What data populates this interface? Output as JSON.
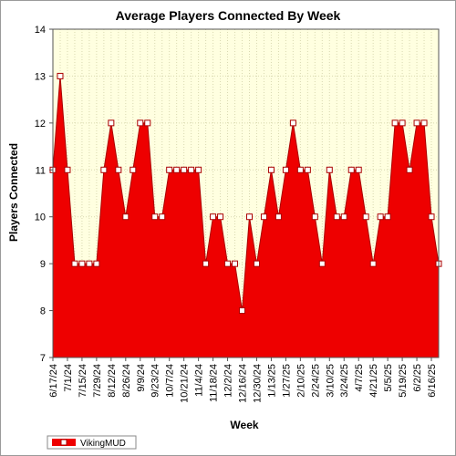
{
  "chart_data": {
    "type": "area",
    "title": "Average Players Connected By Week",
    "xlabel": "Week",
    "ylabel": "Players Connected",
    "ylim": [
      7,
      14
    ],
    "yticks": [
      7,
      8,
      9,
      10,
      11,
      12,
      13,
      14
    ],
    "grid": true,
    "legend_position": "bottom-left",
    "x_tick_labels": [
      "6/17/24",
      "7/1/24",
      "7/15/24",
      "7/29/24",
      "8/12/24",
      "8/26/24",
      "9/9/24",
      "9/23/24",
      "10/7/24",
      "10/21/24",
      "11/4/24",
      "11/18/24",
      "12/2/24",
      "12/16/24",
      "12/30/24",
      "1/13/25",
      "1/27/25",
      "2/10/25",
      "2/24/25",
      "3/10/25",
      "3/24/25",
      "4/7/25",
      "4/21/25",
      "5/5/25",
      "5/19/25",
      "6/2/25",
      "6/16/25"
    ],
    "series": [
      {
        "name": "VikingMUD",
        "color": "#ee0000",
        "values": [
          11,
          13,
          11,
          9,
          9,
          9,
          9,
          11,
          12,
          11,
          10,
          11,
          12,
          12,
          10,
          10,
          11,
          11,
          11,
          11,
          11,
          9,
          10,
          10,
          9,
          9,
          8,
          10,
          9,
          10,
          11,
          10,
          11,
          12,
          11,
          11,
          10,
          9,
          11,
          10,
          10,
          11,
          11,
          10,
          9,
          10,
          10,
          12,
          12,
          11,
          12,
          12,
          10,
          9
        ]
      }
    ],
    "colors": {
      "plot_background": "#ffffe0",
      "grid": "#d9d9b0",
      "area_fill": "#ee0000",
      "area_line": "#aa0000",
      "marker_fill": "#ffffff",
      "marker_stroke": "#aa0000"
    }
  }
}
